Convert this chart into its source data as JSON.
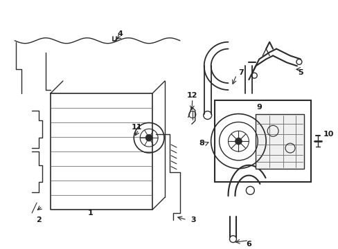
{
  "bg_color": "#ffffff",
  "line_color": "#2a2a2a",
  "label_color": "#1a1a1a",
  "figure_width": 4.89,
  "figure_height": 3.6,
  "dpi": 100
}
